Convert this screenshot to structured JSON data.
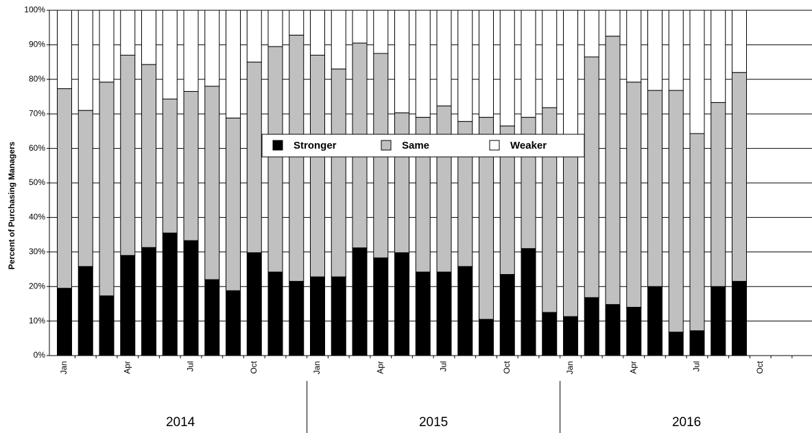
{
  "chart_data": {
    "type": "stacked_bar",
    "y_label": "Percent of Purchasing Managers",
    "categories": [
      "Jan",
      null,
      null,
      "Apr",
      null,
      null,
      "Jul",
      null,
      null,
      "Oct",
      null,
      null,
      "Jan",
      null,
      null,
      "Apr",
      null,
      null,
      "Jul",
      null,
      null,
      "Oct",
      null,
      null,
      "Jan",
      null,
      null,
      "Apr",
      null,
      null,
      "Jul",
      null,
      null,
      "Oct",
      null,
      null
    ],
    "groups": [
      "2014",
      "2015",
      "2016"
    ],
    "series": [
      {
        "name": "Stronger",
        "color": "#000000",
        "values": [
          19.5,
          25.8,
          17.3,
          29,
          31.3,
          35.5,
          33.3,
          22,
          18.8,
          29.8,
          24.2,
          21.5,
          22.8,
          22.8,
          31.2,
          28.3,
          29.8,
          24.2,
          24.2,
          25.8,
          10.5,
          23.5,
          31,
          12.5,
          11.3,
          16.8,
          14.8,
          14,
          20,
          6.8,
          7.2,
          20,
          21.5,
          null,
          null,
          null
        ]
      },
      {
        "name": "Same",
        "color": "#c0c0c0",
        "values": [
          57.8,
          45.2,
          61.9,
          58,
          53,
          38.8,
          43.2,
          56,
          50,
          55.2,
          65.3,
          71.3,
          64.2,
          60.2,
          59.3,
          59.2,
          40.5,
          44.8,
          48.1,
          42,
          58.5,
          43,
          38,
          59.3,
          49.7,
          69.7,
          77.7,
          65.2,
          56.8,
          70,
          57.1,
          53.3,
          60.5,
          null,
          null,
          null
        ]
      },
      {
        "name": "Weaker",
        "color": "#ffffff",
        "values": [
          22.7,
          29,
          20.8,
          13,
          15.7,
          25.7,
          23.5,
          22,
          31.2,
          15,
          10.5,
          7.2,
          13,
          17,
          9.5,
          12.5,
          29.7,
          31,
          27.7,
          32.2,
          31,
          33.5,
          31,
          28.2,
          39,
          13.5,
          7.5,
          20.8,
          23.2,
          23.2,
          35.7,
          26.7,
          18,
          null,
          null,
          null
        ]
      }
    ],
    "ylim": [
      0,
      100
    ],
    "yticks": [
      {
        "value": 0,
        "label": "0%"
      },
      {
        "value": 10,
        "label": "10%"
      },
      {
        "value": 20,
        "label": "20%"
      },
      {
        "value": 30,
        "label": "30%"
      },
      {
        "value": 40,
        "label": "40%"
      },
      {
        "value": 50,
        "label": "50%"
      },
      {
        "value": 60,
        "label": "60%"
      },
      {
        "value": 70,
        "label": "70%"
      },
      {
        "value": 80,
        "label": "80%"
      },
      {
        "value": 90,
        "label": "90%"
      },
      {
        "value": 100,
        "label": "100%"
      }
    ],
    "grid": true,
    "legend": "center"
  }
}
